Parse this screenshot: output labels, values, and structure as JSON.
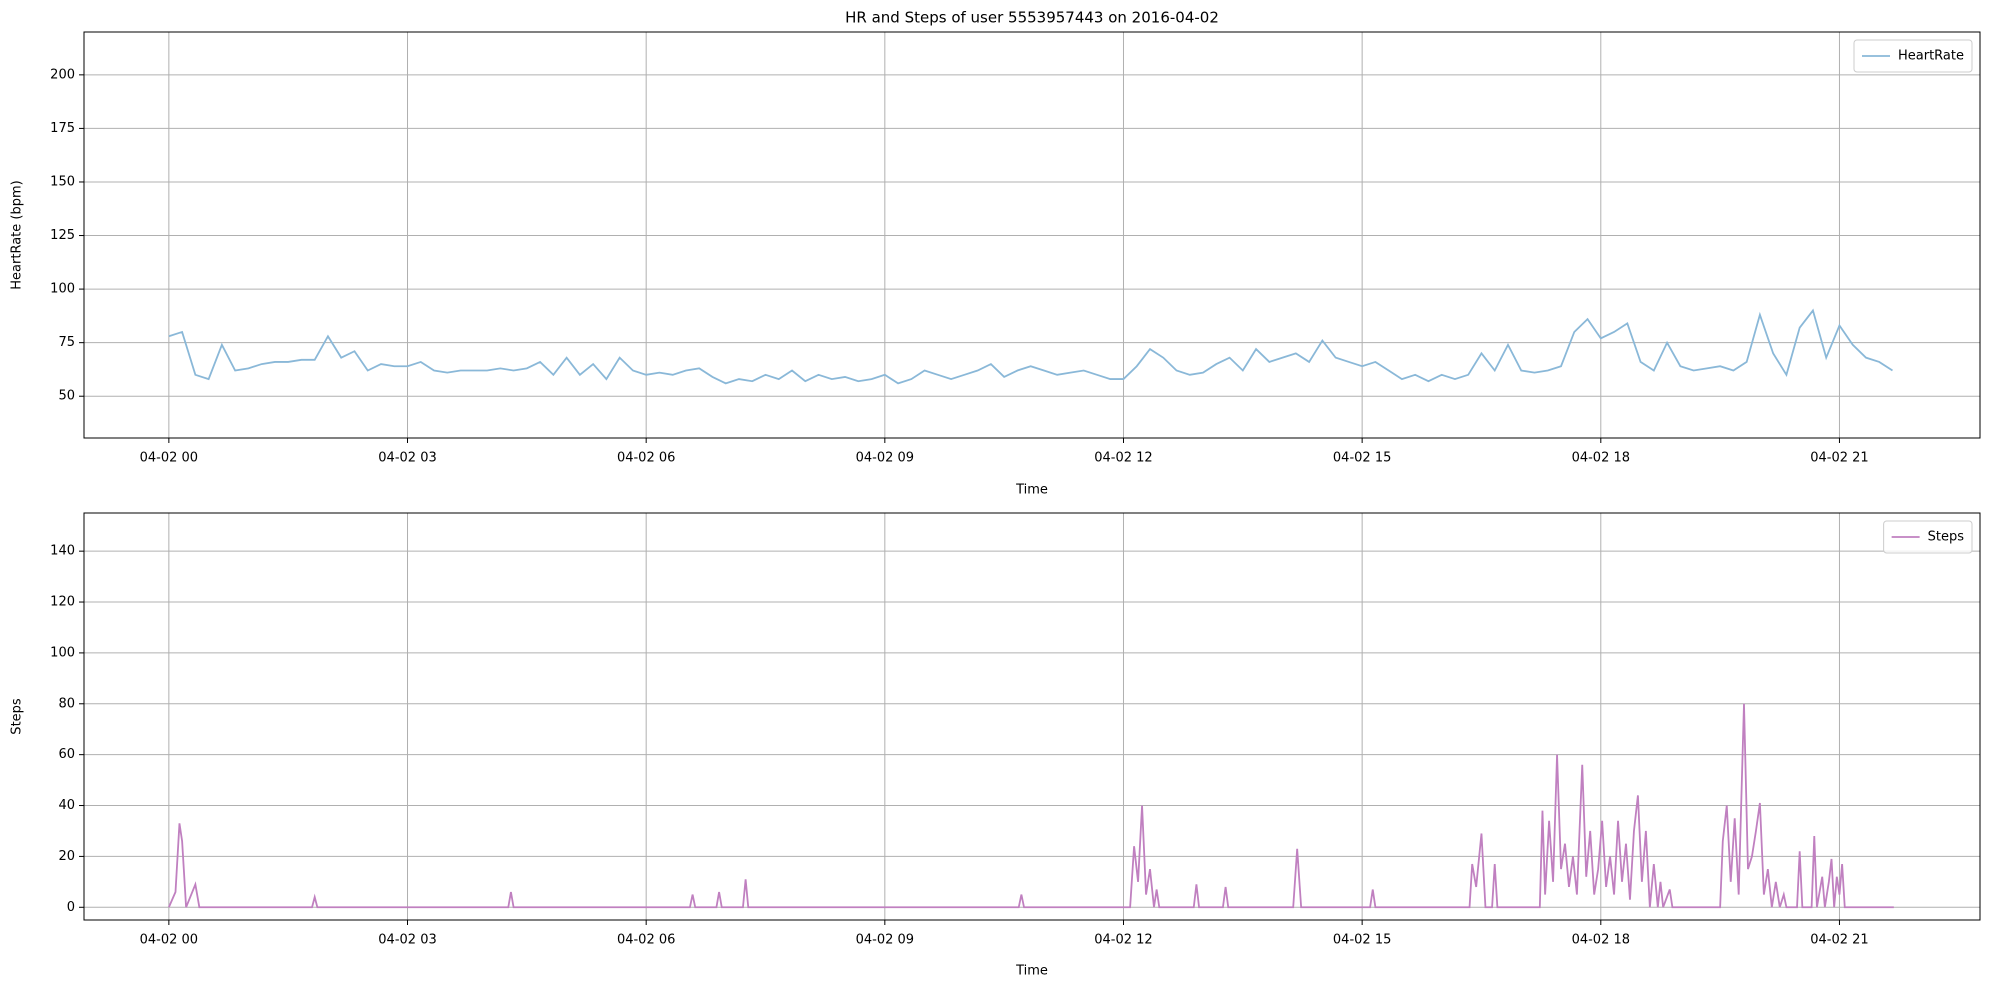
{
  "chart_data": [
    {
      "type": "line",
      "title": "HR and Steps of user 5553957443 on 2016-04-02",
      "x_label": "Time",
      "y_label": "HeartRate (bpm)",
      "xlim": [
        -64,
        1366
      ],
      "ylim": [
        30.5,
        220
      ],
      "grid": true,
      "legend": "upper right",
      "xticks": [
        {
          "value": 0,
          "label": "04-02 00"
        },
        {
          "value": 180,
          "label": "04-02 03"
        },
        {
          "value": 360,
          "label": "04-02 06"
        },
        {
          "value": 540,
          "label": "04-02 09"
        },
        {
          "value": 720,
          "label": "04-02 12"
        },
        {
          "value": 900,
          "label": "04-02 15"
        },
        {
          "value": 1080,
          "label": "04-02 18"
        },
        {
          "value": 1260,
          "label": "04-02 21"
        }
      ],
      "yticks": [
        50,
        75,
        100,
        125,
        150,
        175,
        200
      ],
      "x": [
        0,
        10,
        20,
        30,
        40,
        50,
        60,
        70,
        80,
        90,
        100,
        110,
        120,
        130,
        140,
        150,
        160,
        170,
        180,
        190,
        200,
        210,
        220,
        230,
        240,
        250,
        260,
        270,
        280,
        290,
        300,
        310,
        320,
        330,
        340,
        350,
        360,
        370,
        380,
        390,
        400,
        410,
        420,
        430,
        440,
        450,
        460,
        470,
        480,
        490,
        500,
        510,
        520,
        530,
        540,
        550,
        560,
        570,
        580,
        590,
        600,
        610,
        620,
        630,
        640,
        650,
        660,
        670,
        680,
        690,
        700,
        710,
        720,
        730,
        740,
        750,
        760,
        770,
        780,
        790,
        800,
        810,
        820,
        830,
        840,
        850,
        860,
        870,
        880,
        890,
        900,
        910,
        920,
        930,
        940,
        950,
        960,
        970,
        980,
        990,
        1000,
        1010,
        1020,
        1030,
        1040,
        1050,
        1060,
        1070,
        1080,
        1090,
        1100,
        1110,
        1120,
        1130,
        1140,
        1150,
        1160,
        1170,
        1180,
        1190,
        1200,
        1210,
        1220,
        1230,
        1240,
        1250,
        1260,
        1270,
        1280,
        1290,
        1300
      ],
      "series": [
        {
          "name": "HeartRate",
          "color": "#8ab8d8",
          "values": [
            78,
            80,
            60,
            58,
            74,
            62,
            63,
            65,
            66,
            66,
            67,
            67,
            78,
            68,
            71,
            62,
            65,
            64,
            64,
            66,
            62,
            61,
            62,
            62,
            62,
            63,
            62,
            63,
            66,
            60,
            68,
            60,
            65,
            58,
            68,
            62,
            60,
            61,
            60,
            62,
            63,
            59,
            56,
            58,
            57,
            60,
            58,
            62,
            57,
            60,
            58,
            59,
            57,
            58,
            60,
            56,
            58,
            62,
            60,
            58,
            60,
            62,
            65,
            59,
            62,
            64,
            62,
            60,
            61,
            62,
            60,
            58,
            58,
            64,
            72,
            68,
            62,
            60,
            61,
            65,
            68,
            62,
            72,
            66,
            68,
            70,
            66,
            76,
            68,
            66,
            64,
            66,
            62,
            58,
            60,
            57,
            60,
            58,
            60,
            70,
            62,
            74,
            62,
            61,
            62,
            64,
            80,
            86,
            77,
            80,
            84,
            66,
            62,
            75,
            64,
            62,
            63,
            64,
            62,
            66,
            88,
            70,
            60,
            82,
            90,
            68,
            83,
            74,
            68,
            66,
            62
          ]
        }
      ]
    },
    {
      "type": "line",
      "x_label": "Time",
      "y_label": "Steps",
      "xlim": [
        -64,
        1366
      ],
      "ylim": [
        -5,
        155
      ],
      "grid": true,
      "legend": "upper right",
      "xticks": [
        {
          "value": 0,
          "label": "04-02 00"
        },
        {
          "value": 180,
          "label": "04-02 03"
        },
        {
          "value": 360,
          "label": "04-02 06"
        },
        {
          "value": 540,
          "label": "04-02 09"
        },
        {
          "value": 720,
          "label": "04-02 12"
        },
        {
          "value": 900,
          "label": "04-02 15"
        },
        {
          "value": 1080,
          "label": "04-02 18"
        },
        {
          "value": 1260,
          "label": "04-02 21"
        }
      ],
      "yticks": [
        0,
        20,
        40,
        60,
        80,
        100,
        120,
        140
      ],
      "x": [
        0,
        5,
        8,
        10,
        13,
        20,
        23,
        108,
        110,
        112,
        256,
        258,
        260,
        393,
        395,
        397,
        413,
        415,
        417,
        433,
        435,
        437,
        641,
        643,
        645,
        725,
        728,
        731,
        734,
        737,
        740,
        743,
        745,
        747,
        773,
        775,
        777,
        795,
        797,
        799,
        848,
        851,
        854,
        906,
        908,
        910,
        981,
        983,
        986,
        990,
        993,
        998,
        1000,
        1002,
        1034,
        1036,
        1038,
        1041,
        1044,
        1047,
        1050,
        1053,
        1056,
        1059,
        1062,
        1066,
        1069,
        1072,
        1075,
        1078,
        1081,
        1084,
        1087,
        1090,
        1093,
        1096,
        1099,
        1102,
        1105,
        1108,
        1111,
        1114,
        1117,
        1120,
        1123,
        1125,
        1127,
        1132,
        1134,
        1170,
        1172,
        1175,
        1178,
        1181,
        1184,
        1188,
        1191,
        1194,
        1197,
        1200,
        1203,
        1206,
        1209,
        1212,
        1215,
        1218,
        1220,
        1228,
        1230,
        1232,
        1239,
        1241,
        1243,
        1247,
        1249,
        1252,
        1254,
        1256,
        1258,
        1260,
        1262,
        1264,
        1301
      ],
      "series": [
        {
          "name": "Steps",
          "color": "#c080c0",
          "values": [
            0,
            6,
            33,
            26,
            0,
            9,
            0,
            0,
            4,
            0,
            0,
            6,
            0,
            0,
            5,
            0,
            0,
            6,
            0,
            0,
            11,
            0,
            0,
            5,
            0,
            0,
            24,
            10,
            40,
            5,
            15,
            0,
            7,
            0,
            0,
            9,
            0,
            0,
            8,
            0,
            0,
            23,
            0,
            0,
            7,
            0,
            0,
            17,
            8,
            29,
            0,
            0,
            17,
            0,
            0,
            38,
            5,
            34,
            10,
            60,
            15,
            25,
            8,
            20,
            5,
            56,
            12,
            30,
            5,
            15,
            34,
            8,
            20,
            5,
            34,
            10,
            25,
            3,
            30,
            44,
            10,
            30,
            0,
            17,
            0,
            10,
            0,
            7,
            0,
            0,
            26,
            40,
            10,
            35,
            5,
            80,
            15,
            20,
            30,
            41,
            5,
            15,
            0,
            10,
            0,
            5,
            0,
            0,
            22,
            0,
            0,
            28,
            0,
            12,
            0,
            10,
            19,
            0,
            12,
            5,
            17,
            0,
            0
          ]
        }
      ]
    }
  ]
}
